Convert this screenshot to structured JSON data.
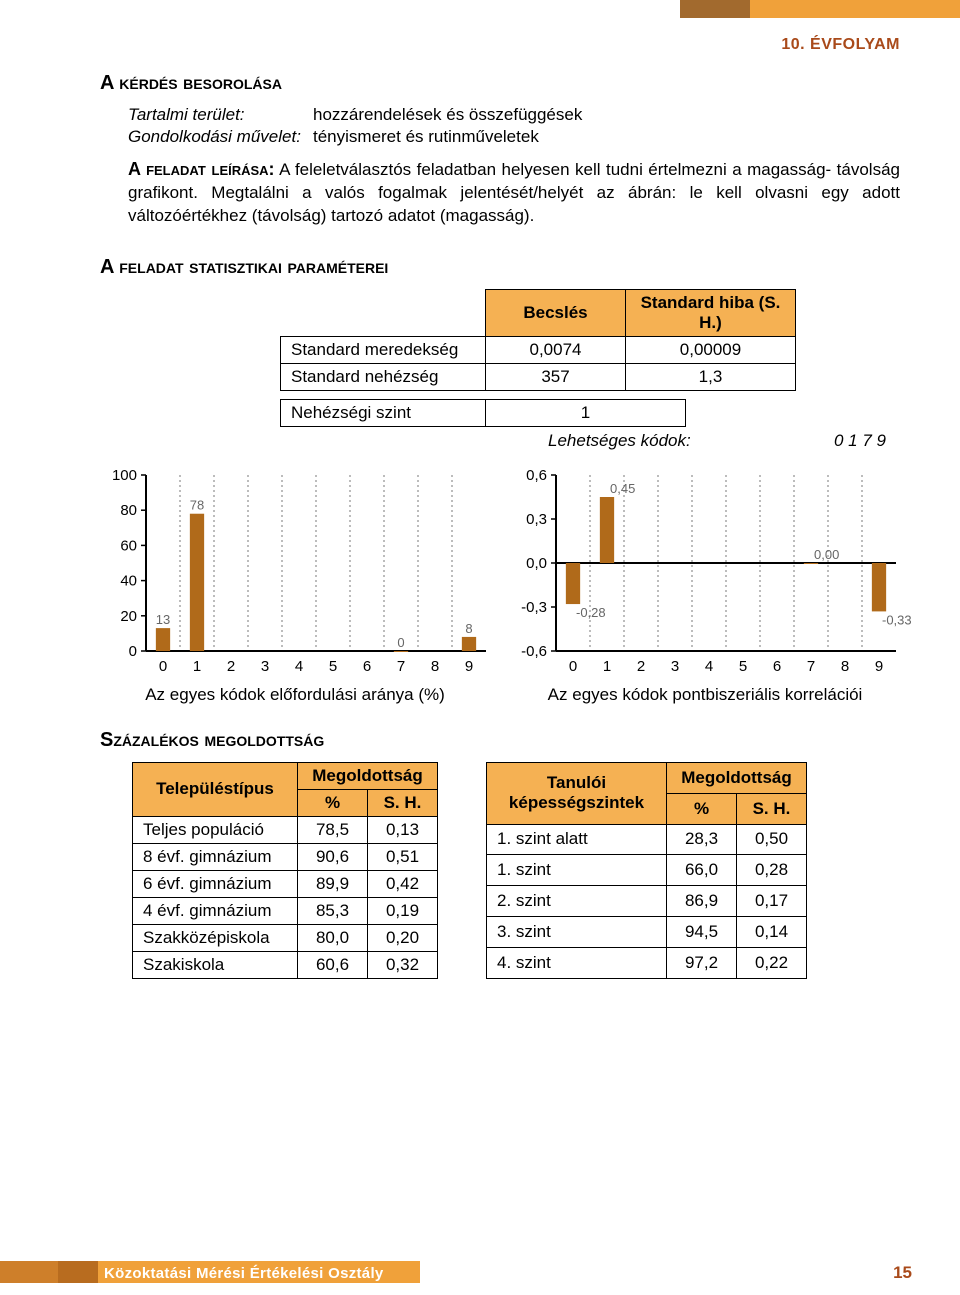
{
  "header": {
    "grade": "10. ÉVFOLYAM"
  },
  "q": {
    "heading": "A kérdés besorolása",
    "defs": {
      "tartalmi_k": "Tartalmi terület:",
      "tartalmi_v": "hozzárendelések és összefüggések",
      "gondol_k": "Gondolkodási művelet:",
      "gondol_v": "tényismeret és rutinműveletek"
    },
    "descr_lead": "A feladat leírása:",
    "descr": " A feleletválasztós feladatban helyesen kell tudni értelmezni a magasság- távolság grafikont. Megtalálni a  valós fogalmak jelentését/helyét az ábrán: le kell olvasni egy adott változóértékhez (távolság) tartozó adatot (magasság)."
  },
  "stats": {
    "heading": "A feladat statisztikai paraméterei",
    "cols": [
      "Becslés",
      "Standard hiba (S. H.)"
    ],
    "rows": [
      {
        "label": "Standard meredekség",
        "v1": "0,0074",
        "v2": "0,00009"
      },
      {
        "label": "Standard nehézség",
        "v1": "357",
        "v2": "1,3"
      }
    ],
    "neh_label": "Nehézségi szint",
    "neh_value": "1",
    "codes_label": "Lehetséges kódok:",
    "codes_value": "0 1 7 9"
  },
  "chart1": {
    "title": "Az egyes kódok előfordulási aránya (%)",
    "categories": [
      "0",
      "1",
      "2",
      "3",
      "4",
      "5",
      "6",
      "7",
      "8",
      "9"
    ],
    "values": [
      13,
      78,
      null,
      null,
      null,
      null,
      null,
      0,
      null,
      8
    ],
    "value_labels": {
      "0": "13",
      "1": "78",
      "7": "0",
      "9": "8"
    },
    "ylim": [
      0,
      100
    ],
    "ytick_step": 20,
    "bar_color": "#b06a1a",
    "grid_color": "#7a7a7a",
    "font_size": 15
  },
  "chart2": {
    "title": "Az egyes kódok pontbiszeriális korrelációi",
    "categories": [
      "0",
      "1",
      "2",
      "3",
      "4",
      "5",
      "6",
      "7",
      "8",
      "9"
    ],
    "values": [
      -0.28,
      0.45,
      null,
      null,
      null,
      null,
      null,
      0.0,
      null,
      -0.33
    ],
    "value_labels": {
      "0": "-0,28",
      "1": "0,45",
      "7": "0,00",
      "9": "-0,33"
    },
    "ylim": [
      -0.6,
      0.6
    ],
    "ytick_step": 0.3,
    "ytick_labels": [
      "-0,6",
      "-0,3",
      "0,0",
      "0,3",
      "0,6"
    ],
    "bar_color": "#b06a1a",
    "grid_color": "#7a7a7a",
    "zero_line_color": "#000",
    "font_size": 15
  },
  "solve": {
    "heading": "Százalékos megoldottság",
    "table1": {
      "head_main": "Településtípus",
      "head_span": "Megoldottság",
      "sub1": "%",
      "sub2": "S. H.",
      "rows": [
        {
          "l": "Teljes populáció",
          "p": "78,5",
          "sh": "0,13"
        },
        {
          "l": "8 évf. gimnázium",
          "p": "90,6",
          "sh": "0,51"
        },
        {
          "l": "6 évf. gimnázium",
          "p": "89,9",
          "sh": "0,42"
        },
        {
          "l": "4 évf. gimnázium",
          "p": "85,3",
          "sh": "0,19"
        },
        {
          "l": "Szakközépiskola",
          "p": "80,0",
          "sh": "0,20"
        },
        {
          "l": "Szakiskola",
          "p": "60,6",
          "sh": "0,32"
        }
      ]
    },
    "table2": {
      "head_main": "Tanulói képességszintek",
      "head_span": "Megoldottság",
      "sub1": "%",
      "sub2": "S. H.",
      "rows": [
        {
          "l": "1. szint alatt",
          "p": "28,3",
          "sh": "0,50"
        },
        {
          "l": "1. szint",
          "p": "66,0",
          "sh": "0,28"
        },
        {
          "l": "2. szint",
          "p": "86,9",
          "sh": "0,17"
        },
        {
          "l": "3. szint",
          "p": "94,5",
          "sh": "0,14"
        },
        {
          "l": "4. szint",
          "p": "97,2",
          "sh": "0,22"
        }
      ]
    }
  },
  "footer": {
    "text": "Közoktatási Mérési Értékelési Osztály",
    "page": "15"
  }
}
